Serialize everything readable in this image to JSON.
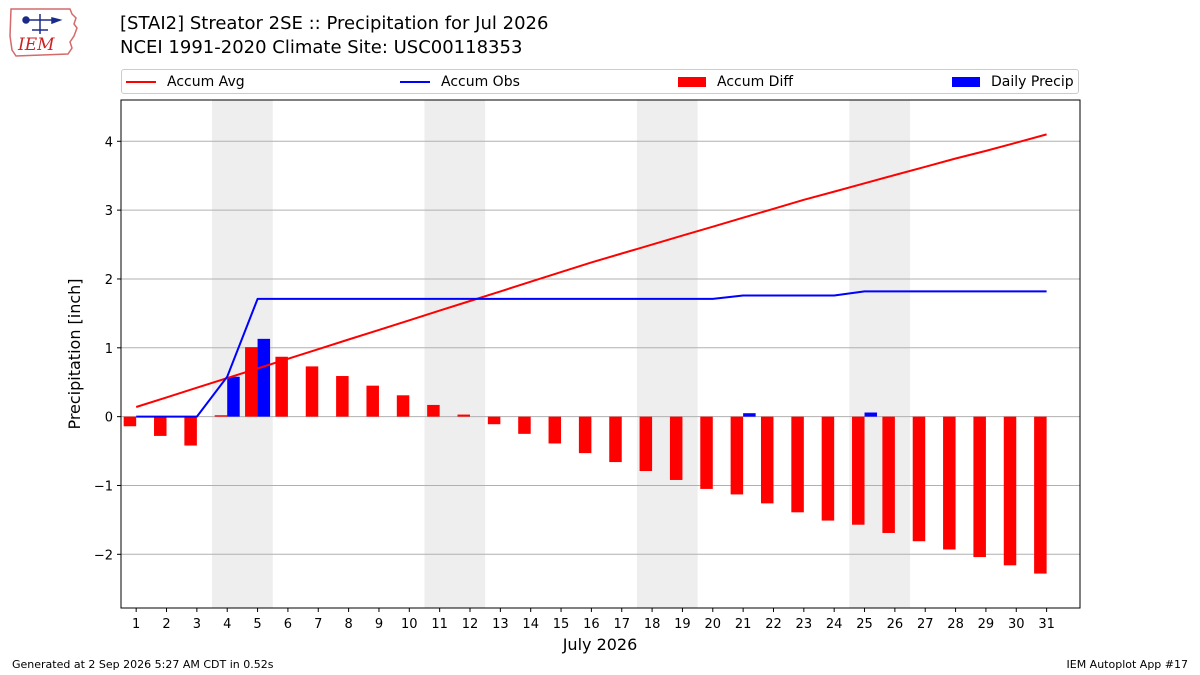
{
  "header": {
    "title_line1": "[STAI2] Streator 2SE :: Precipitation for Jul 2026",
    "title_line2": "NCEI 1991-2020 Climate Site: USC00118353"
  },
  "logo": {
    "text": "IEM",
    "icon": "iowa-state-outline-weather-icon"
  },
  "footer": {
    "generated": "Generated at 2 Sep 2026 5:27 AM CDT in 0.52s",
    "app": "IEM Autoplot App #17"
  },
  "legend": [
    {
      "label": "Accum Avg",
      "kind": "line",
      "color": "#ff0000"
    },
    {
      "label": "Accum Obs",
      "kind": "line",
      "color": "#0000ff"
    },
    {
      "label": "Accum Diff",
      "kind": "patch",
      "color": "#ff0000"
    },
    {
      "label": "Daily Precip",
      "kind": "patch",
      "color": "#0000ff"
    }
  ],
  "chart_data": {
    "type": "bar",
    "xlabel": "July 2026",
    "ylabel": "Precipitation [inch]",
    "ylim": [
      -2.78,
      4.6
    ],
    "yticks": [
      -2,
      -1,
      0,
      1,
      2,
      3,
      4
    ],
    "ytick_labels": [
      "−2",
      "−1",
      "0",
      "1",
      "2",
      "3",
      "4"
    ],
    "categories": [
      "1",
      "2",
      "3",
      "4",
      "5",
      "6",
      "7",
      "8",
      "9",
      "10",
      "11",
      "12",
      "13",
      "14",
      "15",
      "16",
      "17",
      "18",
      "19",
      "20",
      "21",
      "22",
      "23",
      "24",
      "25",
      "26",
      "27",
      "28",
      "29",
      "30",
      "31"
    ],
    "weekend_shading": [
      [
        4,
        5
      ],
      [
        11,
        12
      ],
      [
        18,
        19
      ],
      [
        25,
        26
      ]
    ],
    "grid": "horizontal",
    "series": [
      {
        "name": "Accum Avg",
        "type": "line",
        "color": "#ff0000",
        "values": [
          0.14,
          0.28,
          0.42,
          0.56,
          0.7,
          0.84,
          0.98,
          1.12,
          1.26,
          1.4,
          1.54,
          1.68,
          1.82,
          1.96,
          2.1,
          2.24,
          2.37,
          2.5,
          2.63,
          2.76,
          2.89,
          3.02,
          3.15,
          3.27,
          3.39,
          3.51,
          3.63,
          3.75,
          3.86,
          3.98,
          4.1
        ]
      },
      {
        "name": "Accum Obs",
        "type": "line",
        "color": "#0000ff",
        "values": [
          0.0,
          0.0,
          0.0,
          0.58,
          1.71,
          1.71,
          1.71,
          1.71,
          1.71,
          1.71,
          1.71,
          1.71,
          1.71,
          1.71,
          1.71,
          1.71,
          1.71,
          1.71,
          1.71,
          1.71,
          1.76,
          1.76,
          1.76,
          1.76,
          1.82,
          1.82,
          1.82,
          1.82,
          1.82,
          1.82,
          1.82
        ]
      },
      {
        "name": "Accum Diff",
        "type": "bar",
        "color": "#ff0000",
        "values": [
          -0.14,
          -0.28,
          -0.42,
          0.02,
          1.01,
          0.87,
          0.73,
          0.59,
          0.45,
          0.31,
          0.17,
          0.03,
          -0.11,
          -0.25,
          -0.39,
          -0.53,
          -0.66,
          -0.79,
          -0.92,
          -1.05,
          -1.13,
          -1.26,
          -1.39,
          -1.51,
          -1.57,
          -1.69,
          -1.81,
          -1.93,
          -2.04,
          -2.16,
          -2.28
        ]
      },
      {
        "name": "Daily Precip",
        "type": "bar",
        "color": "#0000ff",
        "values": [
          0,
          0,
          0,
          0.58,
          1.13,
          0,
          0,
          0,
          0,
          0,
          0,
          0,
          0,
          0,
          0,
          0,
          0,
          0,
          0,
          0,
          0.05,
          0,
          0,
          0,
          0.06,
          0,
          0,
          0,
          0,
          0,
          0
        ]
      }
    ]
  }
}
